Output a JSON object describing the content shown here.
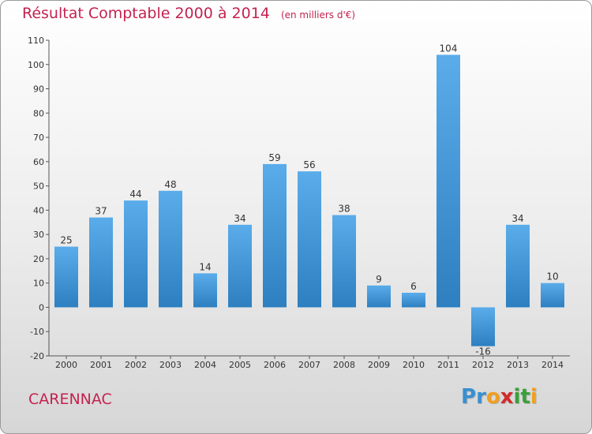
{
  "chart_data": {
    "type": "bar",
    "title": "Résultat Comptable 2000 à 2014",
    "subtitle": "(en milliers d'€)",
    "categories": [
      "2000",
      "2001",
      "2002",
      "2003",
      "2004",
      "2005",
      "2006",
      "2007",
      "2008",
      "2009",
      "2010",
      "2011",
      "2012",
      "2013",
      "2014"
    ],
    "values": [
      25,
      37,
      44,
      48,
      14,
      34,
      59,
      56,
      38,
      9,
      6,
      104,
      -16,
      34,
      10
    ],
    "ylim": [
      -20,
      110
    ],
    "yticks": [
      -20,
      -10,
      0,
      10,
      20,
      30,
      40,
      50,
      60,
      70,
      80,
      90,
      100,
      110
    ],
    "xlabel": "",
    "ylabel": "",
    "grid": false,
    "bar_color_light": "#5aacea",
    "bar_color_dark": "#2d7fc0"
  },
  "commune": "CARENNAC",
  "logo": {
    "text": "Proxiti",
    "letters": [
      "P",
      "r",
      "o",
      "x",
      "i",
      "t",
      "i"
    ],
    "colors": [
      "#3a8fd0",
      "#3a8fd0",
      "#f0a020",
      "#d42a2a",
      "#3aa03a",
      "#3aa03a",
      "#f0a020"
    ]
  },
  "colors": {
    "accent": "#c4234f"
  }
}
